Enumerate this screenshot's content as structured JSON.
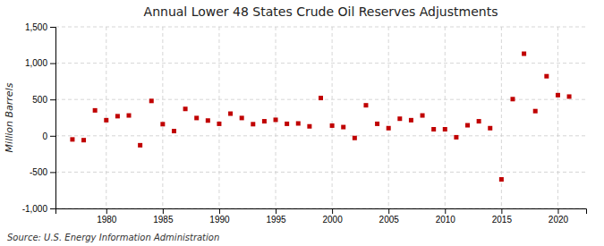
{
  "chart_data": {
    "type": "scatter",
    "title": "Annual Lower 48 States Crude Oil Reserves Adjustments",
    "ylabel": "Million Barrels",
    "annotations": [
      "Source: U.S. Energy Information Administration"
    ],
    "x": [
      1977,
      1978,
      1979,
      1980,
      1981,
      1982,
      1983,
      1984,
      1985,
      1986,
      1987,
      1988,
      1989,
      1990,
      1991,
      1992,
      1993,
      1994,
      1995,
      1996,
      1997,
      1998,
      1999,
      2000,
      2001,
      2002,
      2003,
      2004,
      2005,
      2006,
      2007,
      2008,
      2009,
      2010,
      2011,
      2012,
      2013,
      2014,
      2015,
      2016,
      2017,
      2018,
      2019,
      2020,
      2021
    ],
    "values": [
      -50,
      -60,
      350,
      215,
      270,
      280,
      -130,
      480,
      160,
      65,
      370,
      245,
      210,
      165,
      305,
      245,
      160,
      200,
      220,
      165,
      170,
      130,
      520,
      140,
      120,
      -30,
      420,
      165,
      105,
      235,
      215,
      280,
      90,
      90,
      -20,
      145,
      200,
      105,
      -600,
      505,
      1130,
      340,
      820,
      560,
      540
    ],
    "color": "#c00000",
    "marker": "square",
    "xlim": [
      1975.5,
      2022.5
    ],
    "xticks": [
      1980,
      1985,
      1990,
      1995,
      2000,
      2005,
      2010,
      2015,
      2020
    ],
    "ylim": [
      -1000,
      1500
    ],
    "yticks": [
      {
        "value": -1000,
        "label": "-1,000"
      },
      -500,
      0,
      500,
      {
        "value": 1000,
        "label": "1,000"
      },
      {
        "value": 1500,
        "label": "1,500"
      }
    ],
    "grid": true
  }
}
